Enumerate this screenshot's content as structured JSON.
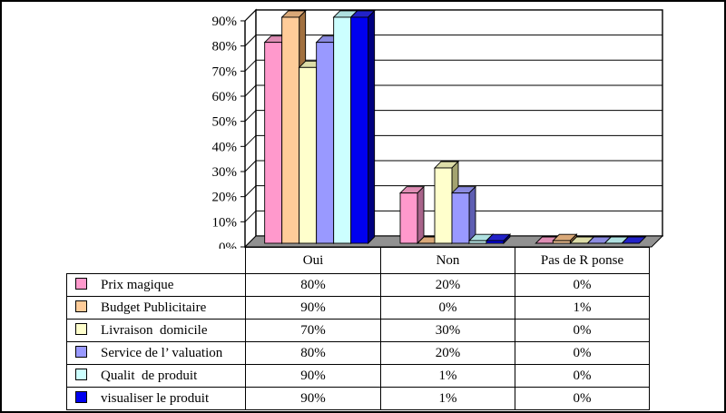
{
  "chart_data": {
    "type": "bar",
    "projection": "3d",
    "title": "",
    "xlabel": "",
    "ylabel": "",
    "categories": [
      "Oui",
      "Non",
      "Pas de R ponse"
    ],
    "y_ticks": [
      "0%",
      "10%",
      "20%",
      "30%",
      "40%",
      "50%",
      "60%",
      "70%",
      "80%",
      "90%"
    ],
    "ylim": [
      0,
      90
    ],
    "grid": true,
    "legend_position": "table-left",
    "wall_color": "#FFFFFF",
    "floor_color": "#919191",
    "series": [
      {
        "name": "Prix magique",
        "values": [
          80,
          20,
          0
        ],
        "labels": [
          "80%",
          "20%",
          "0%"
        ],
        "color": "#FF99CC",
        "color_top": "#DE8DB4",
        "color_side": "#A8648A"
      },
      {
        "name": "Budget Publicitaire",
        "values": [
          90,
          0,
          1
        ],
        "labels": [
          "90%",
          "0%",
          "1%"
        ],
        "color": "#FFCC99",
        "color_top": "#D9A878",
        "color_side": "#A1703F"
      },
      {
        "name": "Livraison  domicile",
        "values": [
          70,
          30,
          0
        ],
        "labels": [
          "70%",
          "30%",
          "0%"
        ],
        "color": "#FFFFCC",
        "color_top": "#DDDDA8",
        "color_side": "#A3A370"
      },
      {
        "name": "Service de l’ valuation",
        "values": [
          80,
          20,
          0
        ],
        "labels": [
          "80%",
          "20%",
          "0%"
        ],
        "color": "#9999FF",
        "color_top": "#8A8AE0",
        "color_side": "#5E5EB2"
      },
      {
        "name": "Qualit  de produit",
        "values": [
          90,
          1,
          0
        ],
        "labels": [
          "90%",
          "1%",
          "0%"
        ],
        "color": "#CCFFFF",
        "color_top": "#AEE0E0",
        "color_side": "#74ACAC"
      },
      {
        "name": "visualiser le produit",
        "values": [
          90,
          1,
          0
        ],
        "labels": [
          "90%",
          "1%",
          "0%"
        ],
        "color": "#0000F0",
        "color_top": "#2222C8",
        "color_side": "#000080"
      }
    ]
  }
}
